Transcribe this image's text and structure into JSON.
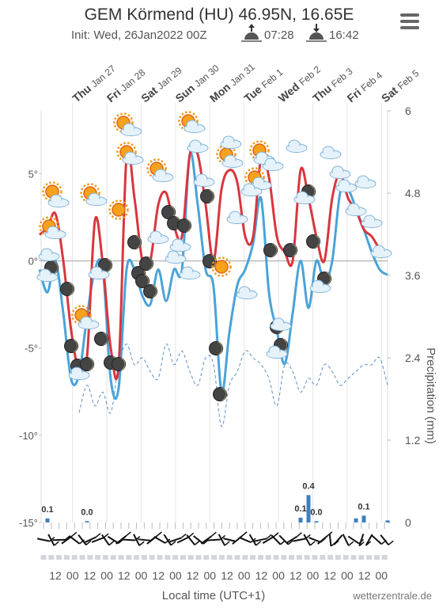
{
  "chart_data": {
    "type": "meteogram",
    "title": "GEM Körmend (HU) 46.95N, 16.65E",
    "subtitle": "Init: Wed, 26Jan2022 00Z",
    "sunrise": "07:28",
    "sunset": "16:42",
    "days": [
      {
        "weekday": "Thu",
        "date": "Jan 27"
      },
      {
        "weekday": "Fri",
        "date": "Jan 28"
      },
      {
        "weekday": "Sat",
        "date": "Jan 29"
      },
      {
        "weekday": "Sun",
        "date": "Jan 30"
      },
      {
        "weekday": "Mon",
        "date": "Jan 31"
      },
      {
        "weekday": "Tue",
        "date": "Feb 1"
      },
      {
        "weekday": "Wed",
        "date": "Feb 2"
      },
      {
        "weekday": "Thu",
        "date": "Feb 3"
      },
      {
        "weekday": "Fri",
        "date": "Feb 4"
      },
      {
        "weekday": "Sat",
        "date": "Feb 5"
      }
    ],
    "xtick_labels": [
      "12",
      "00",
      "12",
      "00",
      "12",
      "00",
      "12",
      "00",
      "12",
      "00",
      "12",
      "00",
      "12",
      "00",
      "12",
      "00",
      "12",
      "00",
      "12",
      "00"
    ],
    "xlabel": "Local time (UTC+1)",
    "credit": "wetterzentrale.de",
    "y2label": "Precipitation (mm)",
    "ylim": [
      -15,
      8.6
    ],
    "yticks": [
      {
        "value": -15,
        "label": "-15°"
      },
      {
        "value": -10,
        "label": "-10°"
      },
      {
        "value": -5,
        "label": "-5°"
      },
      {
        "value": 0,
        "label": "0°"
      },
      {
        "value": 5,
        "label": "5°"
      }
    ],
    "y2lim": [
      0,
      6
    ],
    "y2ticks": [
      0,
      1.2,
      2.4,
      3.6,
      4.8,
      6
    ],
    "series": [
      {
        "color": "#d9363e",
        "values": [
          1.5,
          1.9,
          2.7,
          0,
          -4,
          -6.3,
          -5.5,
          2.3,
          -0.2,
          -5,
          -6,
          6,
          3.6,
          0,
          0,
          3.2,
          3.9,
          2.0,
          1.4,
          6.1,
          6.1,
          3.2,
          0,
          4.1,
          5.2,
          4.5,
          1.4,
          1.4,
          5.9,
          4.8,
          1.4,
          0.5,
          0,
          5.2,
          3.6,
          1.4,
          0,
          3.6,
          5,
          3.6,
          2.9,
          1.8,
          1.4,
          0.7,
          0.5
        ]
      },
      {
        "color": "#4aa3d8",
        "values": [
          -0.5,
          -1.8,
          0,
          -3,
          -6.8,
          -6.5,
          -3.2,
          -0.5,
          -0.5,
          -6.8,
          -7.3,
          -0.5,
          -0.5,
          -2,
          -2.5,
          -0.5,
          -2.3,
          -0.5,
          -0.5,
          6.1,
          3.2,
          -0.5,
          -1.5,
          -7.5,
          -4.1,
          -1.4,
          -0.5,
          1,
          3.6,
          -1.8,
          -4,
          -5.9,
          -3,
          0,
          -2.7,
          0,
          -1.2,
          0,
          3.9,
          4.1,
          3,
          1.8,
          0.5,
          -0.5,
          -0.8
        ]
      },
      {
        "color": "#5b8fc4",
        "axis": "y2",
        "dashed": true,
        "values": [
          null,
          null,
          null,
          null,
          null,
          1.6,
          2.0,
          1.7,
          1.9,
          1.6,
          2.3,
          2.6,
          2.3,
          2.4,
          2.2,
          2.1,
          2.6,
          2.3,
          2.5,
          2.2,
          2.0,
          2.4,
          2.3,
          1.4,
          2.0,
          2.2,
          2.5,
          2.4,
          2.3,
          2.1,
          1.7,
          2.3,
          2.2,
          1.9,
          2.1,
          2.0,
          2.3,
          2.2,
          2.0,
          2.1,
          2.2,
          2.3,
          2.3,
          2.4,
          2.0
        ]
      }
    ],
    "precipitation": {
      "color": "#3f7fbf",
      "values": [
        0,
        0.06,
        0,
        0,
        0,
        0,
        0.02,
        0,
        0,
        0,
        0,
        0,
        0,
        0,
        0,
        0,
        0,
        0,
        0,
        0,
        0,
        0,
        0,
        0,
        0,
        0,
        0,
        0,
        0,
        0,
        0,
        0,
        0,
        0.07,
        0.4,
        0.02,
        0,
        0,
        0,
        0,
        0.06,
        0.1,
        0,
        0,
        0.03
      ],
      "value_labels": [
        null,
        "0.1",
        null,
        null,
        null,
        null,
        "0.0",
        null,
        null,
        null,
        null,
        null,
        null,
        null,
        null,
        null,
        null,
        null,
        null,
        null,
        null,
        null,
        null,
        null,
        null,
        null,
        null,
        null,
        null,
        null,
        null,
        null,
        null,
        "0.1",
        "0.4",
        "0.0",
        null,
        null,
        null,
        null,
        null,
        "0.1",
        null,
        null,
        null
      ]
    }
  }
}
